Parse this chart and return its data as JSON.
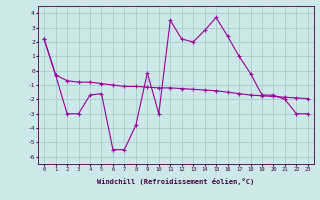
{
  "xlabel": "Windchill (Refroidissement éolien,°C)",
  "x": [
    0,
    1,
    2,
    3,
    4,
    5,
    6,
    7,
    8,
    9,
    10,
    11,
    12,
    13,
    14,
    15,
    16,
    17,
    18,
    19,
    20,
    21,
    22,
    23
  ],
  "line1": [
    2.2,
    -0.3,
    -0.7,
    -0.8,
    -0.8,
    -0.9,
    -1.0,
    -1.1,
    -1.1,
    -1.15,
    -1.2,
    -1.2,
    -1.25,
    -1.3,
    -1.35,
    -1.4,
    -1.5,
    -1.6,
    -1.7,
    -1.75,
    -1.8,
    -1.85,
    -1.9,
    -1.95
  ],
  "line2": [
    2.2,
    -0.3,
    -3.0,
    -3.0,
    -1.7,
    -1.6,
    -5.5,
    -5.5,
    -3.8,
    -0.15,
    -3.0,
    3.5,
    2.2,
    2.0,
    2.8,
    3.7,
    2.4,
    1.0,
    -0.2,
    -1.7,
    -1.7,
    -2.0,
    -3.0,
    -3.0
  ],
  "line_color": "#990099",
  "bg_color": "#cce8e8",
  "grid_color": "#aacccc",
  "ylim": [
    -6.5,
    4.5
  ],
  "xlim": [
    -0.5,
    23.5
  ],
  "yticks": [
    -6,
    -5,
    -4,
    -3,
    -2,
    -1,
    0,
    1,
    2,
    3,
    4
  ],
  "xticks": [
    0,
    1,
    2,
    3,
    4,
    5,
    6,
    7,
    8,
    9,
    10,
    11,
    12,
    13,
    14,
    15,
    16,
    17,
    18,
    19,
    20,
    21,
    22,
    23
  ],
  "xtick_labels": [
    "0",
    "1",
    "2",
    "3",
    "4",
    "5",
    "6",
    "7",
    "8",
    "9",
    "10",
    "11",
    "12",
    "13",
    "14",
    "15",
    "16",
    "17",
    "18",
    "19",
    "20",
    "21",
    "22",
    "23"
  ]
}
